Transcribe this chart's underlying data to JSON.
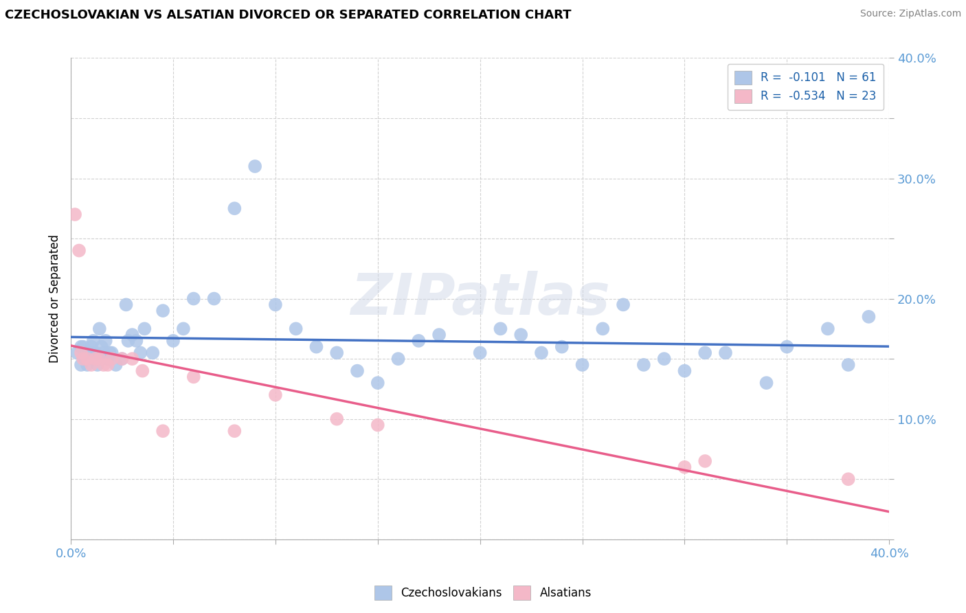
{
  "title": "CZECHOSLOVAKIAN VS ALSATIAN DIVORCED OR SEPARATED CORRELATION CHART",
  "source": "Source: ZipAtlas.com",
  "ylabel": "Divorced or Separated",
  "xlim": [
    0.0,
    0.4
  ],
  "ylim": [
    0.0,
    0.4
  ],
  "x_ticks": [
    0.0,
    0.05,
    0.1,
    0.15,
    0.2,
    0.25,
    0.3,
    0.35,
    0.4
  ],
  "y_ticks": [
    0.0,
    0.05,
    0.1,
    0.15,
    0.2,
    0.25,
    0.3,
    0.35,
    0.4
  ],
  "blue_R": -0.101,
  "blue_N": 61,
  "pink_R": -0.534,
  "pink_N": 23,
  "blue_color": "#aec6e8",
  "pink_color": "#f4b8c8",
  "blue_line_color": "#4472c4",
  "pink_line_color": "#e85d8a",
  "watermark": "ZIPatlas",
  "legend_blue_label": "Czechoslovakians",
  "legend_pink_label": "Alsatians",
  "tick_color": "#5b9bd5",
  "blue_x": [
    0.003,
    0.005,
    0.005,
    0.006,
    0.007,
    0.008,
    0.009,
    0.01,
    0.011,
    0.012,
    0.013,
    0.014,
    0.015,
    0.016,
    0.017,
    0.018,
    0.019,
    0.02,
    0.022,
    0.025,
    0.027,
    0.028,
    0.03,
    0.032,
    0.034,
    0.036,
    0.04,
    0.045,
    0.05,
    0.055,
    0.06,
    0.07,
    0.08,
    0.09,
    0.1,
    0.11,
    0.13,
    0.15,
    0.16,
    0.18,
    0.2,
    0.22,
    0.24,
    0.26,
    0.28,
    0.29,
    0.3,
    0.32,
    0.34,
    0.35,
    0.37,
    0.38,
    0.39,
    0.12,
    0.14,
    0.17,
    0.21,
    0.23,
    0.25,
    0.27,
    0.31
  ],
  "blue_y": [
    0.155,
    0.16,
    0.145,
    0.16,
    0.15,
    0.145,
    0.155,
    0.16,
    0.165,
    0.155,
    0.145,
    0.175,
    0.16,
    0.155,
    0.165,
    0.15,
    0.155,
    0.155,
    0.145,
    0.15,
    0.195,
    0.165,
    0.17,
    0.165,
    0.155,
    0.175,
    0.155,
    0.19,
    0.165,
    0.175,
    0.2,
    0.2,
    0.275,
    0.31,
    0.195,
    0.175,
    0.155,
    0.13,
    0.15,
    0.17,
    0.155,
    0.17,
    0.16,
    0.175,
    0.145,
    0.15,
    0.14,
    0.155,
    0.13,
    0.16,
    0.175,
    0.145,
    0.185,
    0.16,
    0.14,
    0.165,
    0.175,
    0.155,
    0.145,
    0.195,
    0.155
  ],
  "pink_x": [
    0.002,
    0.004,
    0.005,
    0.006,
    0.008,
    0.01,
    0.012,
    0.014,
    0.016,
    0.018,
    0.02,
    0.025,
    0.03,
    0.035,
    0.045,
    0.06,
    0.08,
    0.1,
    0.13,
    0.15,
    0.3,
    0.31,
    0.38
  ],
  "pink_y": [
    0.27,
    0.24,
    0.155,
    0.15,
    0.15,
    0.145,
    0.15,
    0.15,
    0.145,
    0.145,
    0.15,
    0.15,
    0.15,
    0.14,
    0.09,
    0.135,
    0.09,
    0.12,
    0.1,
    0.095,
    0.06,
    0.065,
    0.05
  ]
}
